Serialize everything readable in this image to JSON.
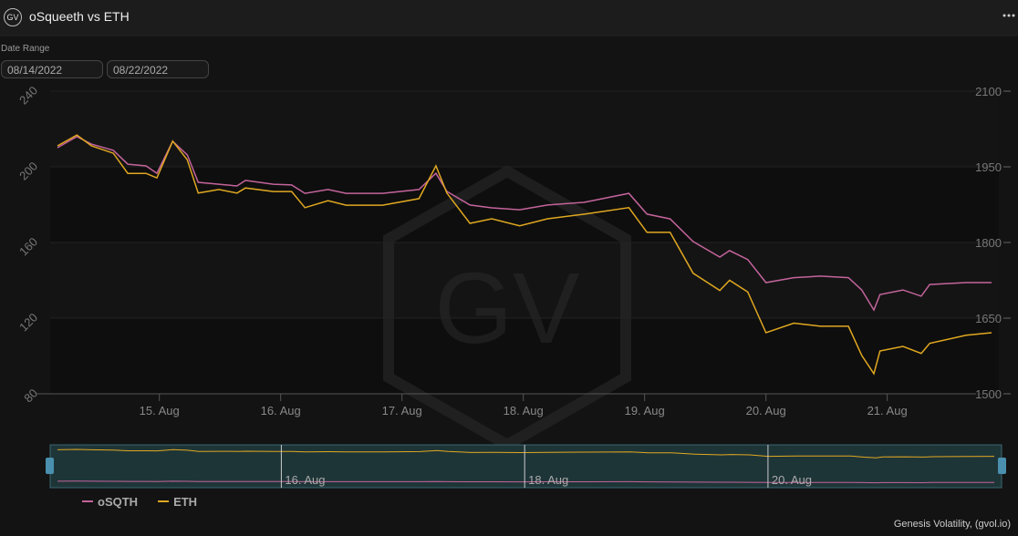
{
  "header": {
    "icon": "GV",
    "title": "oSqueeth vs ETH"
  },
  "date_range": {
    "label": "Date Range",
    "start": "08/14/2022",
    "end": "08/22/2022"
  },
  "watermark": "GV",
  "credit": "Genesis Volatility, (gvol.io)",
  "chart_data": {
    "type": "line",
    "x": [
      14.16,
      14.32,
      14.44,
      14.62,
      14.74,
      14.89,
      14.98,
      15.11,
      15.23,
      15.32,
      15.49,
      15.64,
      15.71,
      15.94,
      16.09,
      16.2,
      16.39,
      16.54,
      16.84,
      17.14,
      17.28,
      17.37,
      17.56,
      17.74,
      17.97,
      18.2,
      18.5,
      18.87,
      19.02,
      19.21,
      19.4,
      19.62,
      19.7,
      19.85,
      20.0,
      20.23,
      20.45,
      20.68,
      20.79,
      20.89,
      20.94,
      21.13,
      21.28,
      21.35,
      21.65,
      21.86
    ],
    "series": [
      {
        "name": "oSQTH",
        "color": "#c4649c",
        "axis": "y",
        "values": [
          210.1,
          216,
          212,
          208.7,
          201.4,
          200.5,
          196.6,
          213.5,
          206.3,
          191.8,
          190.8,
          189.9,
          192.8,
          190.8,
          190.4,
          186,
          188,
          186,
          186,
          188,
          196.6,
          187,
          179.8,
          178.3,
          177.3,
          179.8,
          181.2,
          186,
          175,
          172.5,
          160.5,
          152.3,
          155.7,
          151,
          138.8,
          141.4,
          142.2,
          141.4,
          134.9,
          124.3,
          132.5,
          134.9,
          131.6,
          137.8,
          138.8,
          138.8
        ]
      },
      {
        "name": "ETH",
        "color": "#e0a820",
        "axis": "y2",
        "values": [
          1991.6,
          2013,
          1991.6,
          1977,
          1937,
          1937,
          1928,
          2001,
          1964,
          1898,
          1905,
          1898,
          1908,
          1901,
          1901,
          1869,
          1883,
          1874,
          1874,
          1887,
          1952,
          1898,
          1838,
          1847,
          1833,
          1847,
          1856,
          1869,
          1820,
          1820,
          1739,
          1705,
          1725,
          1702,
          1621,
          1640,
          1634,
          1634,
          1576,
          1540,
          1585,
          1594,
          1580,
          1600,
          1616,
          1621
        ]
      }
    ],
    "xlim": [
      14.1,
      21.92
    ],
    "xticks": [
      {
        "value": 15,
        "label": "15. Aug"
      },
      {
        "value": 16,
        "label": "16. Aug"
      },
      {
        "value": 17,
        "label": "17. Aug"
      },
      {
        "value": 18,
        "label": "18. Aug"
      },
      {
        "value": 19,
        "label": "19. Aug"
      },
      {
        "value": 20,
        "label": "20. Aug"
      },
      {
        "value": 21,
        "label": "21. Aug"
      }
    ],
    "ylim": [
      80,
      240
    ],
    "yticks": [
      80,
      120,
      160,
      200,
      240
    ],
    "y2lim": [
      1500,
      2100
    ],
    "y2ticks": [
      1500,
      1650,
      1800,
      1950,
      2100
    ],
    "navigator_ticks": [
      {
        "value": 16,
        "label": "16. Aug"
      },
      {
        "value": 18,
        "label": "18. Aug"
      },
      {
        "value": 20,
        "label": "20. Aug"
      }
    ],
    "grid": true
  }
}
